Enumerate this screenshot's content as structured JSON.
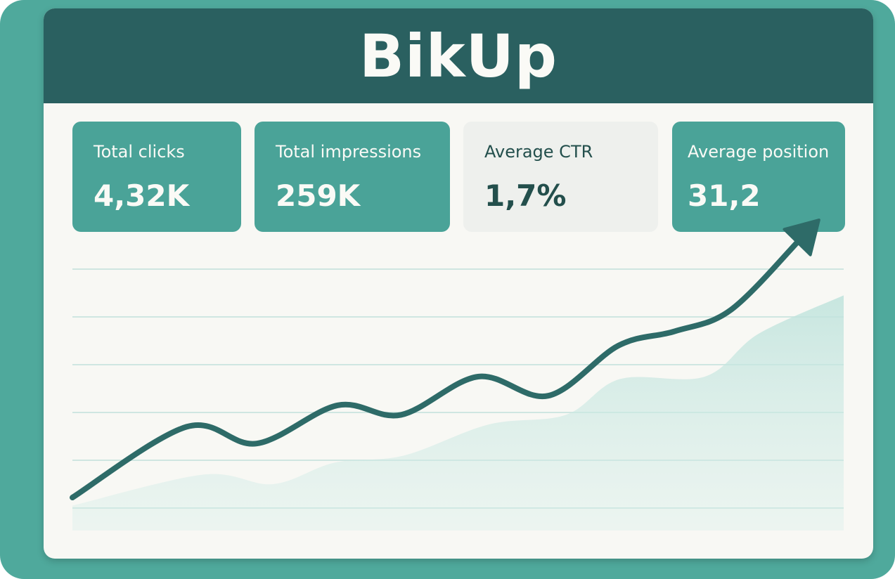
{
  "app": {
    "title": "BikUp"
  },
  "metrics": [
    {
      "label": "Total clicks",
      "value": "4,32K"
    },
    {
      "label": "Total impressions",
      "value": "259K"
    },
    {
      "label": "Average CTR",
      "value": "1,7%"
    },
    {
      "label": "Average position",
      "value": "31,2"
    }
  ],
  "colors": {
    "frame": "#4fa99c",
    "header": "#2a6060",
    "card": "#4aa398",
    "card_light": "#eef0ed",
    "line": "#2e6b68",
    "area": "#bfe3dc"
  },
  "chart_data": {
    "type": "line",
    "title": "",
    "xlabel": "",
    "ylabel": "",
    "xlim": [
      0,
      100
    ],
    "ylim": [
      0,
      100
    ],
    "grid": true,
    "series": [
      {
        "name": "trend",
        "style": "line-with-arrow",
        "x": [
          0,
          14.8,
          23.9,
          34.4,
          42.6,
          52.6,
          61.7,
          70.8,
          78.1,
          85.4,
          94.5
        ],
        "y": [
          4.4,
          34,
          27,
          43,
          39,
          55,
          47,
          68,
          74,
          83,
          113
        ]
      },
      {
        "name": "background",
        "style": "area",
        "x": [
          0,
          17,
          26,
          34,
          43,
          54,
          64,
          71,
          82,
          89,
          100
        ],
        "y": [
          1,
          14,
          10,
          19,
          22,
          35,
          39,
          54,
          55,
          73,
          89
        ]
      }
    ]
  }
}
